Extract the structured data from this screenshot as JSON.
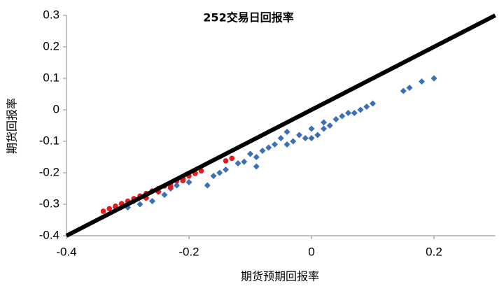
{
  "chart_data": {
    "type": "scatter",
    "title": "252交易日回报率",
    "xlabel": "期货预期回报率",
    "ylabel": "期货回报率",
    "xlim": [
      -0.4,
      0.3
    ],
    "ylim": [
      -0.4,
      0.3
    ],
    "xticks": [
      -0.4,
      -0.2,
      0,
      0.2
    ],
    "yticks": [
      0.3,
      0.2,
      0.1,
      0,
      -0.1,
      -0.2,
      -0.3,
      -0.4
    ],
    "grid": false,
    "series": [
      {
        "color": "#3b6fb6",
        "marker": "diamond",
        "x": [
          -0.32,
          -0.31,
          -0.3,
          -0.29,
          -0.28,
          -0.27,
          -0.26,
          -0.25,
          -0.24,
          -0.23,
          -0.22,
          -0.21,
          -0.2,
          -0.19,
          -0.17,
          -0.16,
          -0.15,
          -0.14,
          -0.12,
          -0.11,
          -0.1,
          -0.09,
          -0.08,
          -0.07,
          -0.06,
          -0.05,
          -0.04,
          -0.03,
          -0.02,
          -0.01,
          0.0,
          0.01,
          0.02,
          0.03,
          0.04,
          0.05,
          0.06,
          0.07,
          0.08,
          0.09,
          0.1,
          0.15,
          0.16,
          0.18,
          0.2,
          -0.09,
          -0.04,
          0.0,
          0.02
        ],
        "values": [
          -0.31,
          -0.3,
          -0.31,
          -0.29,
          -0.3,
          -0.28,
          -0.29,
          -0.26,
          -0.27,
          -0.25,
          -0.24,
          -0.22,
          -0.23,
          -0.2,
          -0.24,
          -0.21,
          -0.2,
          -0.19,
          -0.17,
          -0.165,
          -0.14,
          -0.15,
          -0.13,
          -0.12,
          -0.11,
          -0.09,
          -0.11,
          -0.1,
          -0.08,
          -0.09,
          -0.06,
          -0.08,
          -0.04,
          -0.05,
          -0.03,
          -0.02,
          -0.01,
          -0.01,
          0.0,
          0.01,
          0.02,
          0.06,
          0.07,
          0.09,
          0.1,
          -0.18,
          -0.07,
          -0.09,
          -0.06
        ]
      },
      {
        "color": "#e8191c",
        "marker": "circle",
        "x": [
          -0.34,
          -0.33,
          -0.32,
          -0.31,
          -0.3,
          -0.29,
          -0.28,
          -0.27,
          -0.26,
          -0.25,
          -0.24,
          -0.23,
          -0.22,
          -0.21,
          -0.2,
          -0.19,
          -0.18,
          -0.14,
          -0.13,
          -0.27,
          -0.25,
          -0.23,
          -0.21
        ],
        "values": [
          -0.322,
          -0.314,
          -0.306,
          -0.298,
          -0.29,
          -0.282,
          -0.274,
          -0.266,
          -0.258,
          -0.25,
          -0.242,
          -0.234,
          -0.226,
          -0.218,
          -0.21,
          -0.202,
          -0.194,
          -0.162,
          -0.154,
          -0.28,
          -0.26,
          -0.245,
          -0.225
        ]
      }
    ],
    "reference_line": {
      "color": "#000000",
      "x": [
        -0.4,
        0.3
      ],
      "values": [
        -0.4,
        0.3
      ]
    }
  }
}
